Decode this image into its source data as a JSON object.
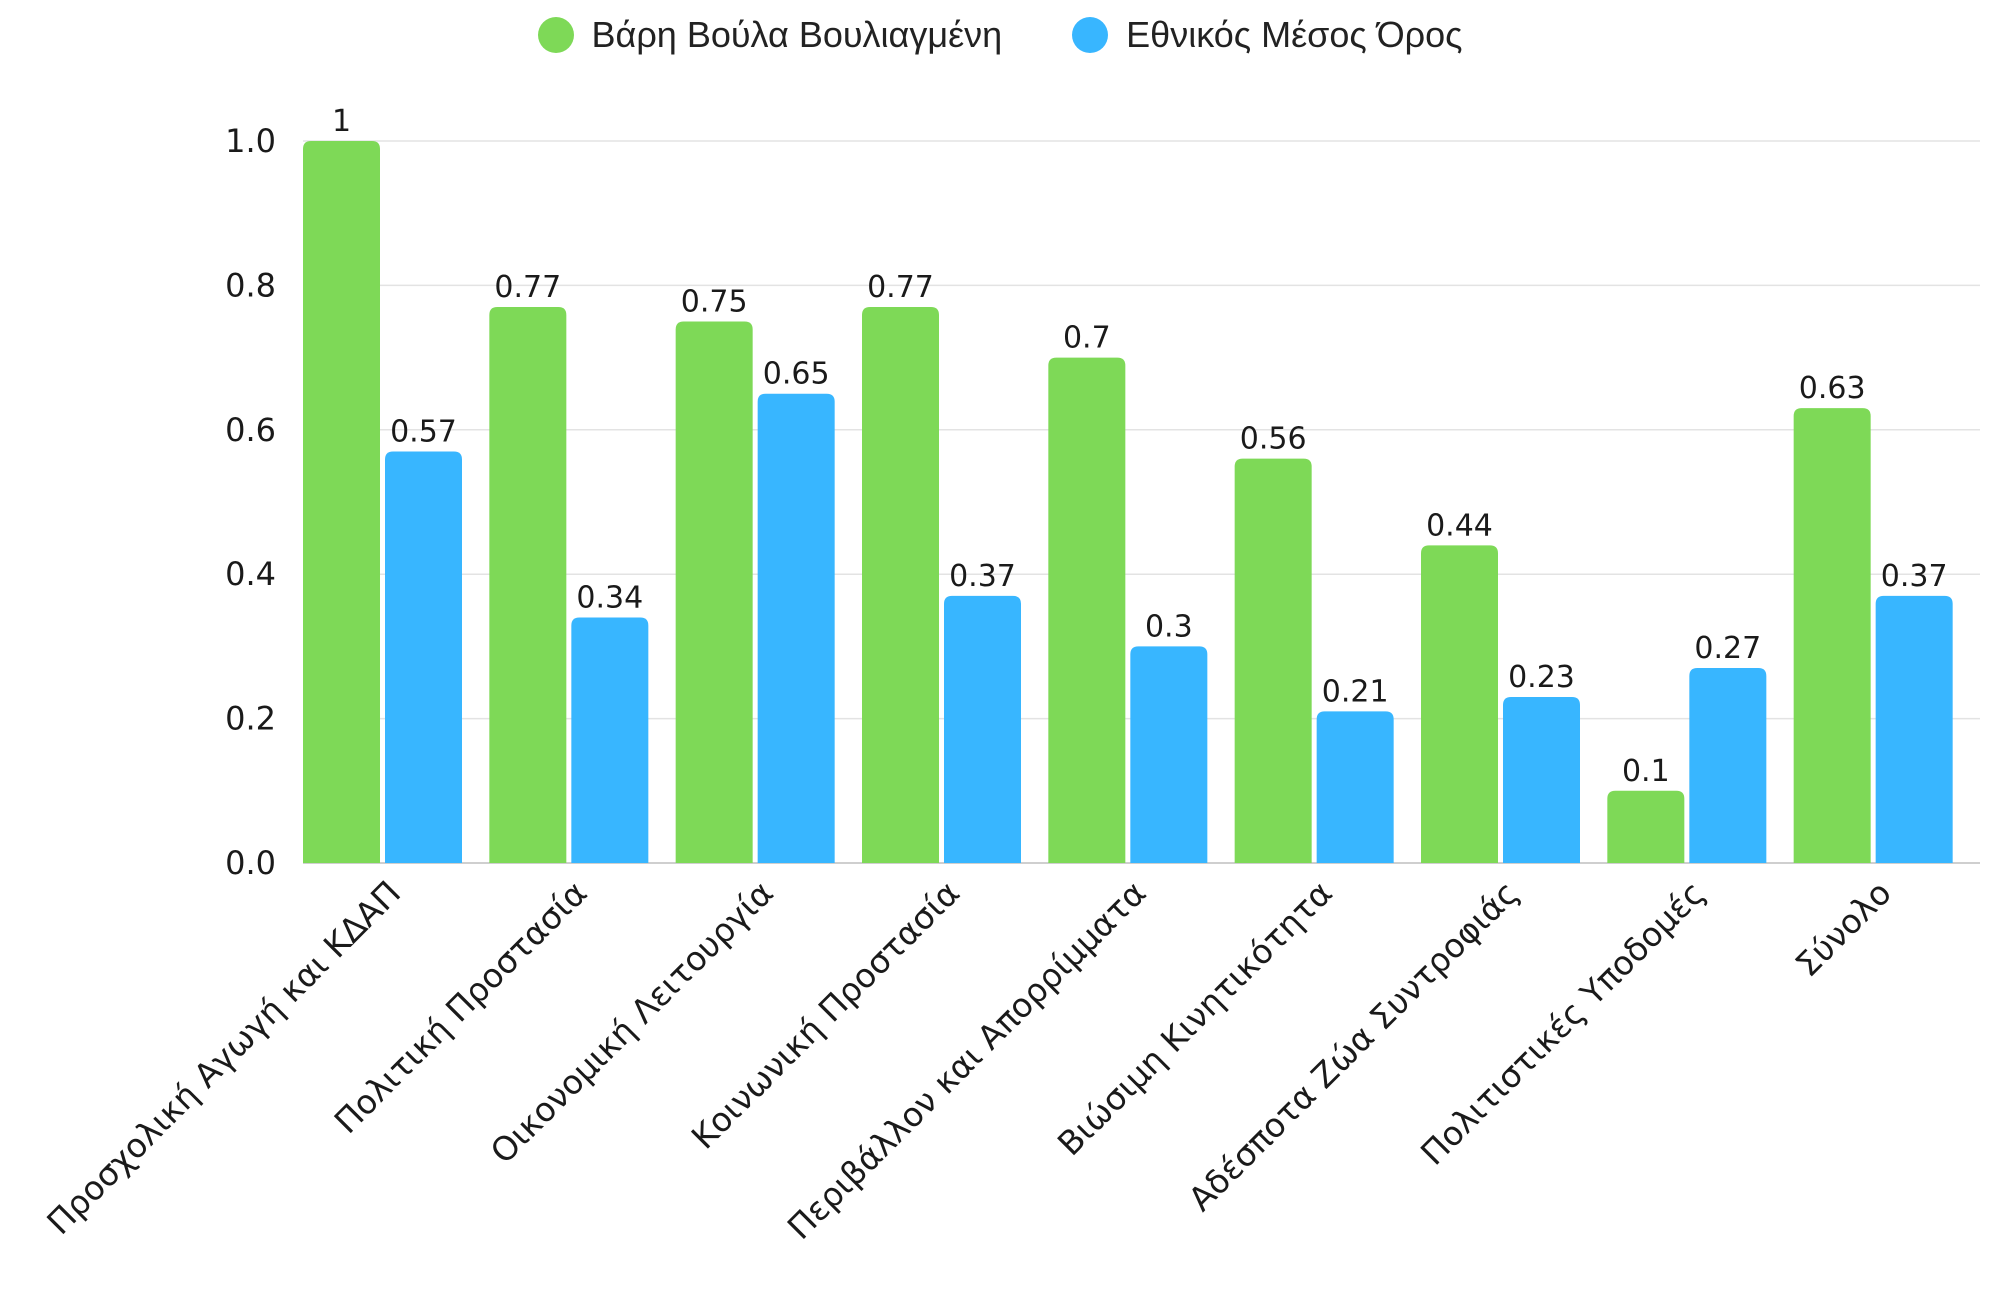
{
  "chart_data": {
    "type": "bar",
    "categories": [
      "Προσχολική Αγωγή και ΚΔΑΠ",
      "Πολιτική Προστασία",
      "Οικονομική Λειτουργία",
      "Κοινωνική Προστασία",
      "Περιβάλλον και Απορρίμματα",
      "Βιώσιμη Κινητικότητα",
      "Αδέσποτα Ζώα Συντροφιάς",
      "Πολιτιστικές Υποδομές",
      "Σύνολο"
    ],
    "series": [
      {
        "name": "Βάρη Βούλα Βουλιαγμένη",
        "color": "#7ED957",
        "values": [
          1,
          0.77,
          0.75,
          0.77,
          0.7,
          0.56,
          0.44,
          0.1,
          0.63
        ],
        "labels": [
          "1",
          "0.77",
          "0.75",
          "0.77",
          "0.7",
          "0.56",
          "0.44",
          "0.1",
          "0.63"
        ]
      },
      {
        "name": "Εθνικός Μέσος Όρος",
        "color": "#38B6FF",
        "values": [
          0.57,
          0.34,
          0.65,
          0.37,
          0.3,
          0.21,
          0.23,
          0.27,
          0.37
        ],
        "labels": [
          "0.57",
          "0.34",
          "0.65",
          "0.37",
          "0.3",
          "0.21",
          "0.23",
          "0.27",
          "0.37"
        ]
      }
    ],
    "ylim": [
      0,
      1.0
    ],
    "yticks": [
      "0.0",
      "0.2",
      "0.4",
      "0.6",
      "0.8",
      "1.0"
    ],
    "ytick_values": [
      0,
      0.2,
      0.4,
      0.6,
      0.8,
      1.0
    ],
    "grid": true,
    "legend_position": "top-center",
    "title": "",
    "xlabel": "",
    "ylabel": ""
  }
}
